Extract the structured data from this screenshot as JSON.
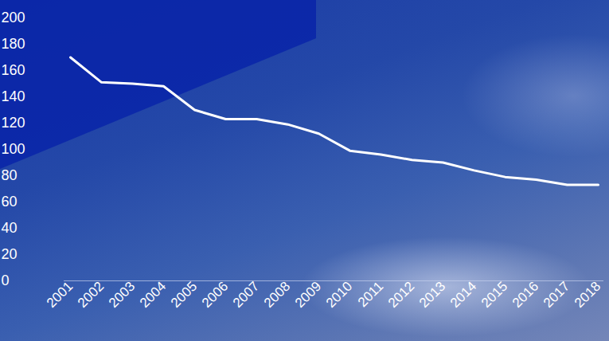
{
  "chart_data": {
    "type": "line",
    "categories": [
      "2001",
      "2002",
      "2003",
      "2004",
      "2005",
      "2006",
      "2007",
      "2008",
      "2009",
      "2010",
      "2011",
      "2012",
      "2013",
      "2014",
      "2015",
      "2016",
      "2017",
      "2018"
    ],
    "values": [
      170,
      151,
      150,
      148,
      130,
      123,
      123,
      119,
      112,
      99,
      96,
      92,
      90,
      84,
      79,
      77,
      73,
      73
    ],
    "color": "#ffffff",
    "ylim": [
      0,
      200
    ],
    "yticks": [
      0,
      20,
      40,
      60,
      80,
      100,
      120,
      140,
      160,
      180,
      200
    ],
    "grid": false
  }
}
